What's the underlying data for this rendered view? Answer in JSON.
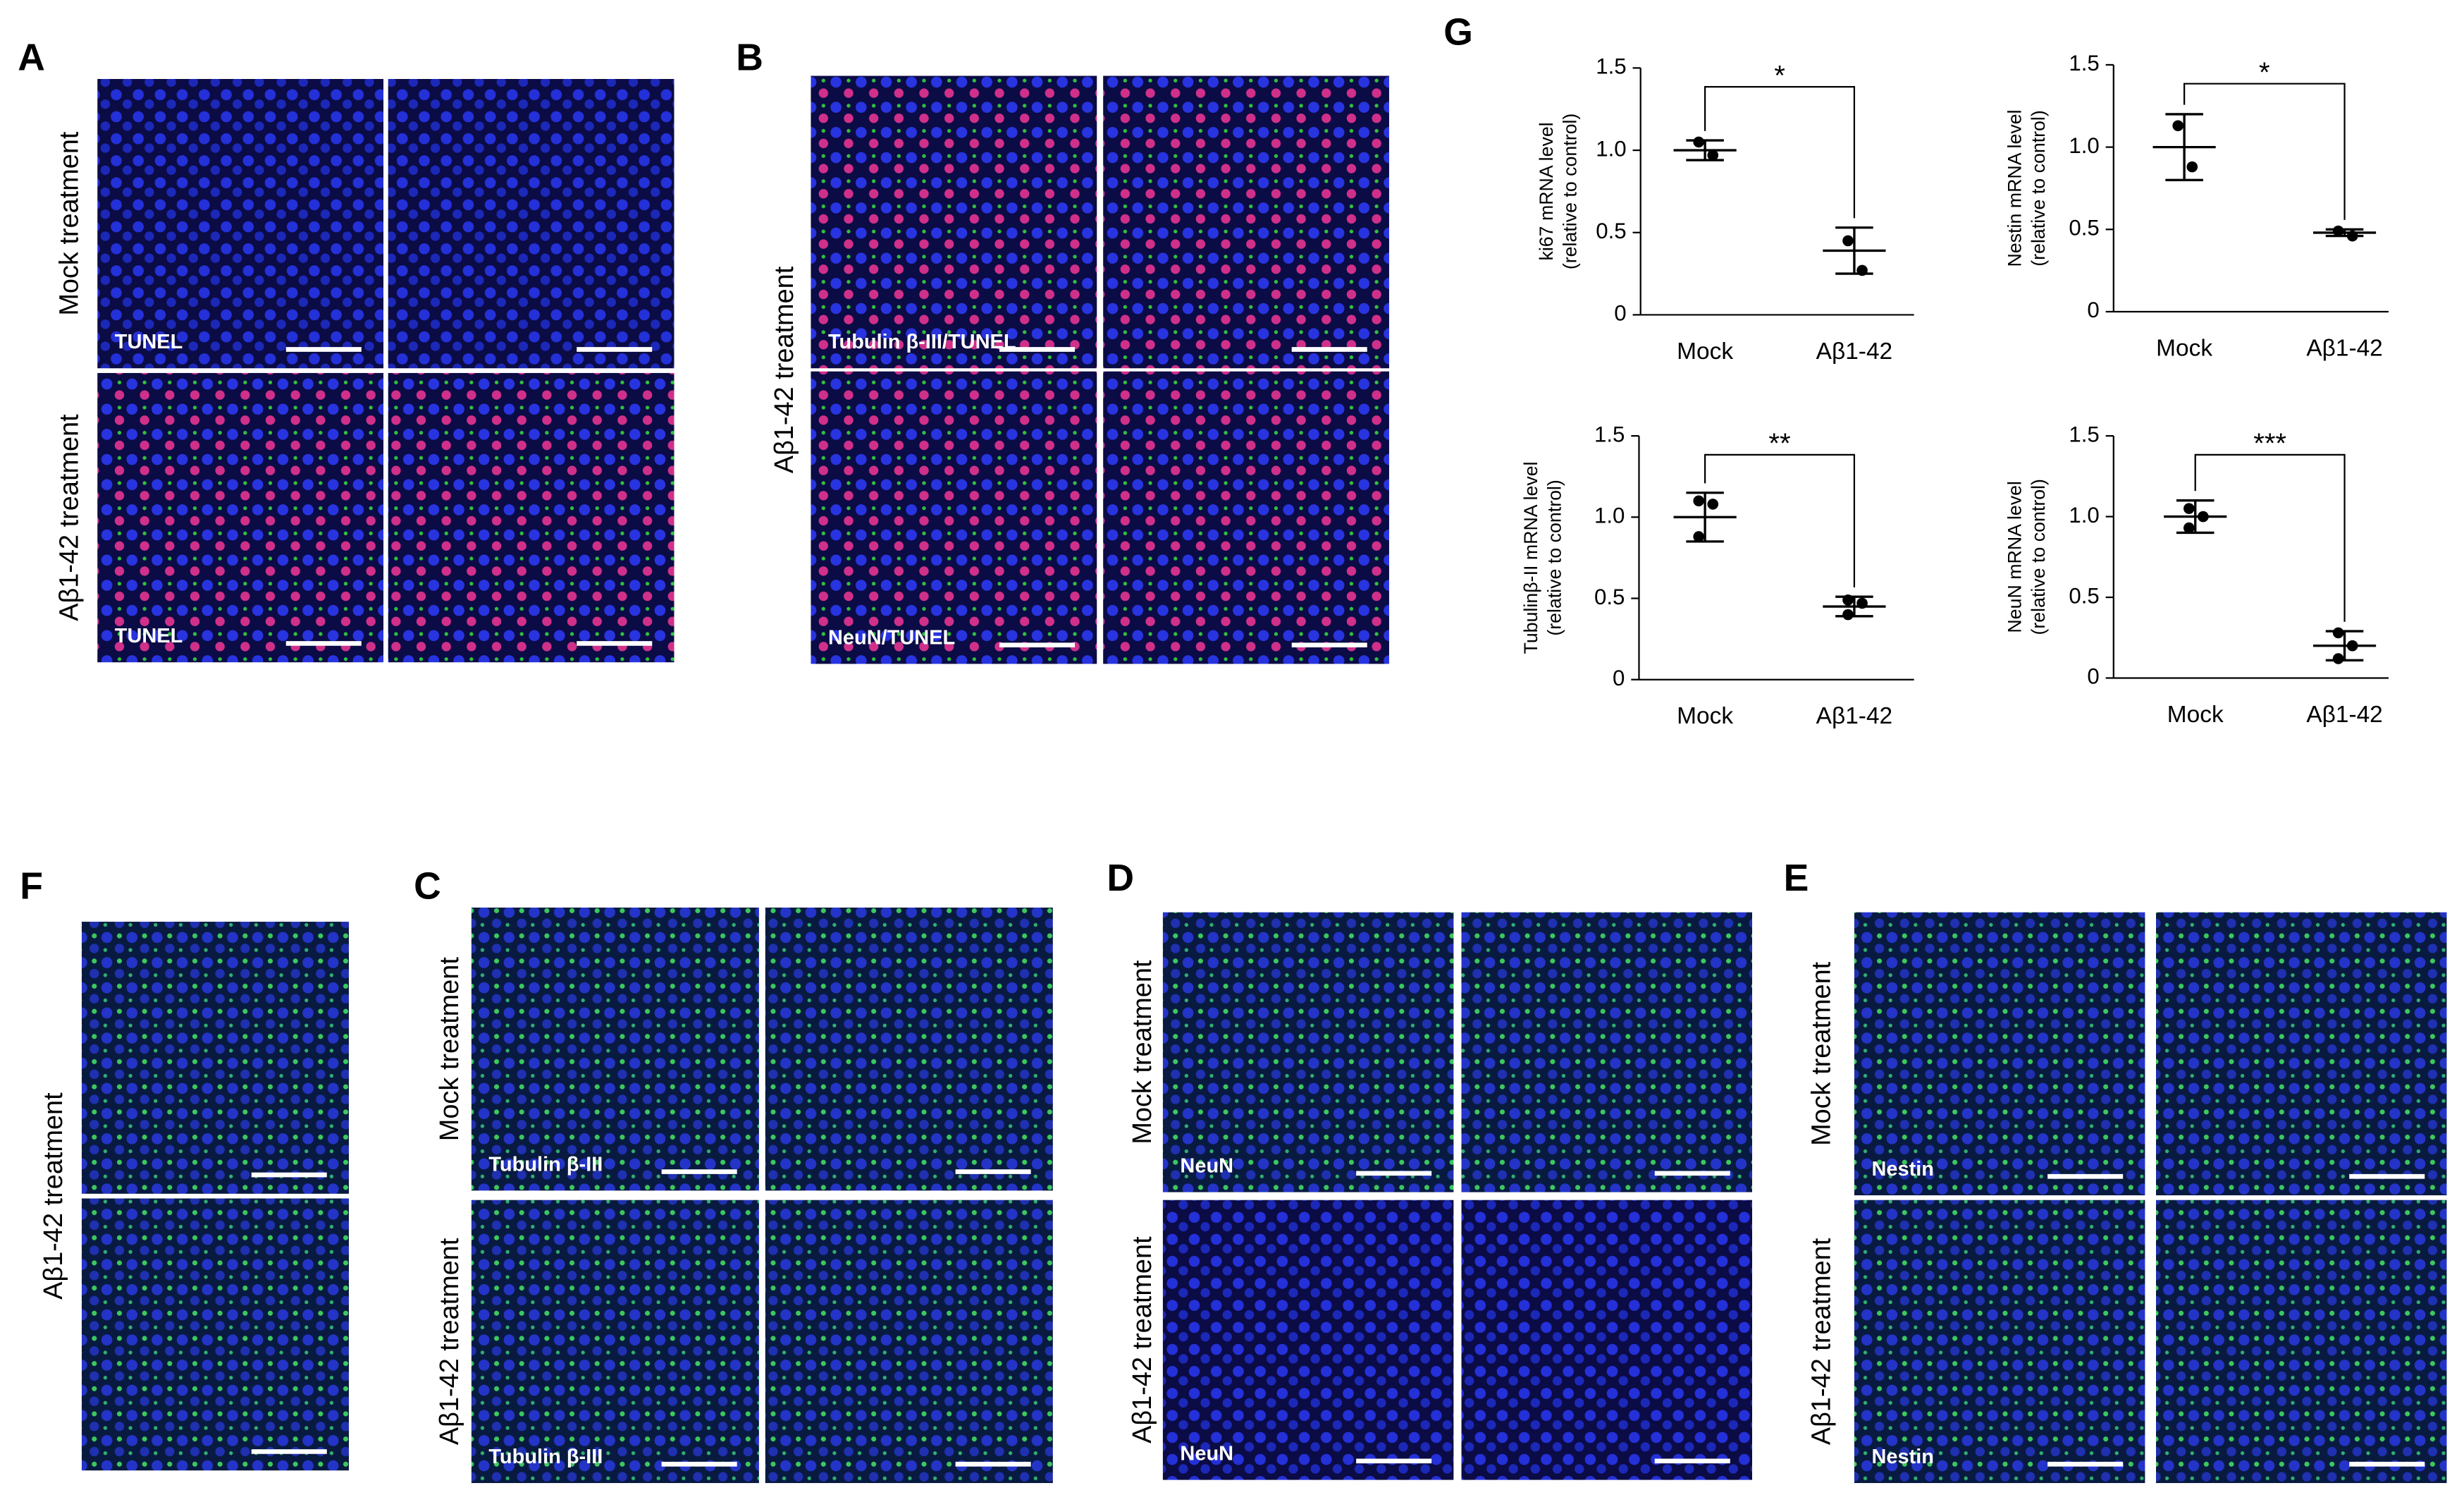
{
  "panels": [
    {
      "letter": "A",
      "rows": [
        "Mock treatment",
        "Aβ1-42 treatment"
      ],
      "tags": [
        "TUNEL",
        "TUNEL"
      ]
    },
    {
      "letter": "B",
      "rows": [
        "Aβ1-42 treatment"
      ],
      "tags": [
        "Tubulin β-III/TUNEL",
        "NeuN/TUNEL"
      ]
    },
    {
      "letter": "F",
      "rows": [
        "Aβ1-42 treatment"
      ],
      "tags": []
    },
    {
      "letter": "C",
      "rows": [
        "Mock treatment",
        "Aβ1-42 treatment"
      ],
      "tags": [
        "Tubulin β-III",
        "Tubulin β-III"
      ]
    },
    {
      "letter": "D",
      "rows": [
        "Mock treatment",
        "Aβ1-42 treatment"
      ],
      "tags": [
        "NeuN",
        "NeuN"
      ]
    },
    {
      "letter": "E",
      "rows": [
        "Mock treatment",
        "Aβ1-42 treatment"
      ],
      "tags": [
        "Nestin",
        "Nestin"
      ]
    }
  ],
  "chart_letter": "G",
  "chart_data": [
    {
      "type": "dot",
      "ylabel": [
        "ki67 mRNA level",
        "(relative to control)"
      ],
      "categories": [
        "Mock",
        "Aβ1-42"
      ],
      "points": [
        [
          1.05,
          0.97
        ],
        [
          0.45,
          0.27
        ]
      ],
      "means": [
        1.0,
        0.39
      ],
      "errors": [
        0.06,
        0.14
      ],
      "significance": "*",
      "ylim": [
        0,
        1.5
      ],
      "yticks": [
        0,
        0.5,
        {
          "value": 1,
          "label": "1.0"
        },
        1.5
      ]
    },
    {
      "type": "dot",
      "ylabel": [
        "Nestin mRNA level",
        "(relative to control)"
      ],
      "categories": [
        "Mock",
        "Aβ1-42"
      ],
      "points": [
        [
          1.13,
          0.88
        ],
        [
          0.49,
          0.46
        ]
      ],
      "means": [
        1.0,
        0.48
      ],
      "errors": [
        0.2,
        0.02
      ],
      "significance": "*",
      "ylim": [
        0,
        1.5
      ],
      "yticks": [
        0,
        0.5,
        {
          "value": 1,
          "label": "1.0"
        },
        1.5
      ]
    },
    {
      "type": "dot",
      "ylabel": [
        "Tubulinβ-II mRNA level",
        "(relative to control)"
      ],
      "categories": [
        "Mock",
        "Aβ1-42"
      ],
      "points": [
        [
          1.1,
          1.08,
          0.88
        ],
        [
          0.49,
          0.47,
          0.4
        ]
      ],
      "means": [
        1.0,
        0.45
      ],
      "errors": [
        0.15,
        0.06
      ],
      "significance": "**",
      "ylim": [
        0,
        1.5
      ],
      "yticks": [
        0,
        0.5,
        {
          "value": 1,
          "label": "1.0"
        },
        1.5
      ]
    },
    {
      "type": "dot",
      "ylabel": [
        "NeuN mRNA level",
        "(relative to control)"
      ],
      "categories": [
        "Mock",
        "Aβ1-42"
      ],
      "points": [
        [
          1.05,
          1.0,
          0.93
        ],
        [
          0.28,
          0.2,
          0.12
        ]
      ],
      "means": [
        1.0,
        0.2
      ],
      "errors": [
        0.1,
        0.09
      ],
      "significance": "***",
      "ylim": [
        0,
        1.5
      ],
      "yticks": [
        0,
        0.5,
        {
          "value": 1,
          "label": "1.0"
        },
        1.5
      ]
    }
  ]
}
